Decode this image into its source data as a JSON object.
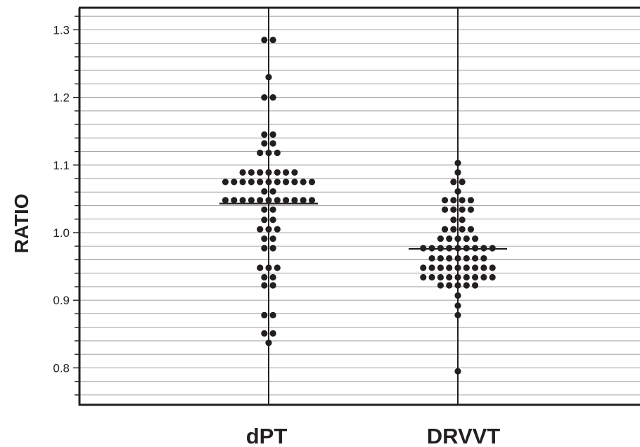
{
  "chart_data": {
    "type": "scatter",
    "subtype": "dot-plot",
    "ylabel": "RATIO",
    "xlabel": "",
    "categories": [
      "dPT",
      "DRVVT"
    ],
    "ylim": [
      0.755,
      1.335
    ],
    "yticks_major": [
      0.8,
      0.9,
      1.0,
      1.1,
      1.2,
      1.3
    ],
    "ytick_labels": [
      "0.8",
      "0.9",
      "1.0",
      "1.1",
      "1.2",
      "1.3"
    ],
    "yticks_minor_step": 0.02,
    "grid": true,
    "legend": "none",
    "colors": {
      "point": "#231f20",
      "grid": "#a7a9ac",
      "axis": "#231f20"
    },
    "series": [
      {
        "category": "dPT",
        "mean": 1.043,
        "values": [
          1.285,
          1.285,
          1.23,
          1.2,
          1.2,
          1.145,
          1.145,
          1.132,
          1.132,
          1.118,
          1.118,
          1.118,
          1.089,
          1.089,
          1.089,
          1.089,
          1.089,
          1.089,
          1.089,
          1.075,
          1.075,
          1.075,
          1.075,
          1.075,
          1.075,
          1.075,
          1.075,
          1.075,
          1.075,
          1.075,
          1.061,
          1.061,
          1.048,
          1.048,
          1.048,
          1.048,
          1.048,
          1.048,
          1.048,
          1.048,
          1.048,
          1.048,
          1.048,
          1.034,
          1.034,
          1.019,
          1.019,
          1.005,
          1.005,
          1.005,
          0.991,
          0.991,
          0.977,
          0.977,
          0.948,
          0.948,
          0.948,
          0.934,
          0.934,
          0.922,
          0.922,
          0.878,
          0.878,
          0.851,
          0.851,
          0.837
        ]
      },
      {
        "category": "DRVVT",
        "mean": 0.976,
        "values": [
          1.103,
          1.089,
          1.075,
          1.075,
          1.061,
          1.048,
          1.048,
          1.048,
          1.048,
          1.034,
          1.034,
          1.034,
          1.034,
          1.019,
          1.019,
          1.005,
          1.005,
          1.005,
          1.005,
          0.991,
          0.991,
          0.991,
          0.991,
          0.991,
          0.977,
          0.977,
          0.977,
          0.977,
          0.977,
          0.977,
          0.977,
          0.977,
          0.977,
          0.962,
          0.962,
          0.962,
          0.962,
          0.962,
          0.962,
          0.962,
          0.948,
          0.948,
          0.948,
          0.948,
          0.948,
          0.948,
          0.948,
          0.948,
          0.948,
          0.934,
          0.934,
          0.934,
          0.934,
          0.934,
          0.934,
          0.934,
          0.934,
          0.934,
          0.922,
          0.922,
          0.922,
          0.922,
          0.922,
          0.907,
          0.892,
          0.878,
          0.795
        ]
      }
    ]
  }
}
